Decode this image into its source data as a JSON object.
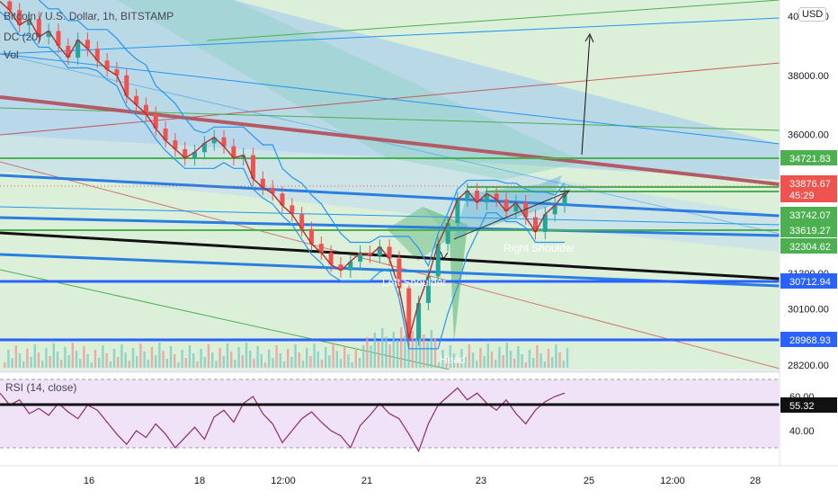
{
  "header": {
    "symbol_title": "Bitcoin / U.S. Dollar, 1h, BITSTAMP",
    "indicator_dc": "DC (20)",
    "indicator_vol": "Vol",
    "currency_button": "USD"
  },
  "chart_data": [
    {
      "type": "line",
      "title": "Bitcoin / U.S. Dollar, 1h, BITSTAMP",
      "currency": "USD",
      "y_axis_ticks": [
        "40000.00",
        "38000.00",
        "36000.00",
        "31300.00",
        "30100.00",
        "28200.00"
      ],
      "x_axis_ticks": [
        "16",
        "18",
        "12:00",
        "21",
        "23",
        "25",
        "12:00",
        "28"
      ],
      "price_labels": [
        {
          "value": "34721.83",
          "color": "#4caf50"
        },
        {
          "value": "33876.67",
          "sub": "45:29",
          "color": "#ef5350"
        },
        {
          "value": "33742.07",
          "color": "#4caf50"
        },
        {
          "value": "33619.27",
          "color": "#4caf50"
        },
        {
          "value": "32304.62",
          "color": "#4caf50"
        },
        {
          "value": "30712.94",
          "color": "#2962ff"
        },
        {
          "value": "28968.93",
          "color": "#2962ff"
        }
      ],
      "price_path": [
        40500,
        40200,
        39700,
        39900,
        39300,
        39500,
        39000,
        38600,
        39200,
        38900,
        38500,
        38200,
        38000,
        37300,
        37000,
        36700,
        36200,
        35800,
        35500,
        35200,
        35400,
        35700,
        35900,
        35600,
        35200,
        35300,
        34500,
        34200,
        34000,
        33600,
        33300,
        32800,
        32300,
        32000,
        31600,
        31400,
        31700,
        32000,
        31900,
        32200,
        31800,
        30800,
        29100,
        30300,
        31200,
        32300,
        33000,
        33800,
        34100,
        33700,
        34000,
        33800,
        33400,
        33700,
        33200,
        32700,
        33300,
        33600,
        34000
      ],
      "annotations": [
        "Left Shoulder",
        "Head",
        "Right Shoulder"
      ],
      "colors": {
        "up": "#26a69a",
        "down": "#ef5350",
        "donchian": "#2196f3",
        "price_line": "#a83232"
      }
    },
    {
      "type": "line",
      "title": "RSI (14, close)",
      "y_axis_ticks": [
        "60.00",
        "40.00"
      ],
      "current_value": "55.32",
      "levels": [
        70,
        30
      ],
      "rsi_path": [
        62,
        55,
        58,
        50,
        53,
        49,
        56,
        51,
        47,
        55,
        52,
        45,
        38,
        32,
        40,
        36,
        44,
        38,
        30,
        36,
        42,
        35,
        48,
        52,
        45,
        56,
        60,
        50,
        44,
        33,
        40,
        47,
        51,
        45,
        40,
        37,
        30,
        43,
        49,
        56,
        50,
        47,
        38,
        28,
        44,
        55,
        60,
        65,
        58,
        62,
        56,
        52,
        58,
        50,
        44,
        52,
        57,
        60,
        62
      ]
    }
  ]
}
